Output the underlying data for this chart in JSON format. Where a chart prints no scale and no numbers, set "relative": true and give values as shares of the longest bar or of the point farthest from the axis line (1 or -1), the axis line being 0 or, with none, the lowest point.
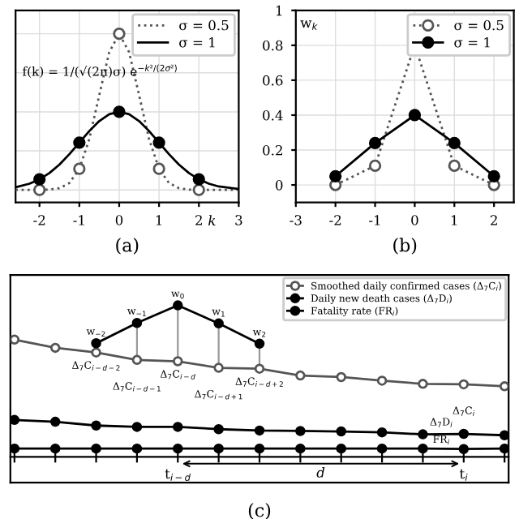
{
  "chart_data": [
    {
      "type": "line",
      "relative": true,
      "xlabel": "k",
      "xlim": [
        -2.6,
        3
      ],
      "xticks": [
        -2,
        -1,
        0,
        1,
        2,
        3
      ],
      "grid": true,
      "legend": "top right",
      "annotations": [
        "f(k) = 1/(√(2π)σ) e$^{−k²/(2σ²)}$",
        "(a)"
      ],
      "series": [
        {
          "name": "σ = 0.5",
          "color": "#555555",
          "line_style": "dotted",
          "marker": "none",
          "x": [
            -2.6,
            -2.25,
            -2,
            -1.75,
            -1.5,
            -1.25,
            -1,
            -0.75,
            -0.5,
            -0.25,
            0,
            0.25,
            0.5,
            0.75,
            1,
            1.25,
            1.5,
            1.75,
            2,
            2.25,
            2.5,
            3
          ],
          "values": [
            0,
            0,
            0,
            0.002,
            0.011,
            0.044,
            0.135,
            0.325,
            0.607,
            0.882,
            1,
            0.882,
            0.607,
            0.325,
            0.135,
            0.044,
            0.011,
            0.002,
            0,
            0,
            0,
            0
          ]
        },
        {
          "name": "σ = 1",
          "color": "#000000",
          "line_style": "solid",
          "marker": "none",
          "x": [
            -2.6,
            -2.25,
            -2,
            -1.75,
            -1.5,
            -1.25,
            -1,
            -0.75,
            -0.5,
            -0.25,
            0,
            0.25,
            0.5,
            0.75,
            1,
            1.25,
            1.5,
            1.75,
            2,
            2.25,
            2.5,
            3
          ],
          "values": [
            0.017,
            0.04,
            0.068,
            0.108,
            0.162,
            0.229,
            0.303,
            0.377,
            0.441,
            0.485,
            0.5,
            0.485,
            0.441,
            0.377,
            0.303,
            0.229,
            0.162,
            0.108,
            0.068,
            0.04,
            0.022,
            0.006
          ]
        },
        {
          "type": "scatter",
          "color": "#555555",
          "marker": "circle",
          "x": [
            -2,
            -1,
            0,
            1,
            2
          ],
          "values": [
            0,
            0.135,
            1,
            0.135,
            0
          ]
        },
        {
          "type": "scatter",
          "color": "#000000",
          "marker": "circle",
          "x": [
            -2,
            -1,
            0,
            1,
            2
          ],
          "values": [
            0.068,
            0.303,
            0.5,
            0.303,
            0.068
          ]
        }
      ]
    },
    {
      "type": "line",
      "ylabel": "w$_{k}$",
      "xlim": [
        -3,
        2.5
      ],
      "xticks": [
        -3,
        -2,
        -1,
        0,
        1,
        2
      ],
      "ylim": [
        -0.1,
        1
      ],
      "yticks": [
        0,
        0.2,
        0.4,
        0.6,
        0.8,
        1
      ],
      "grid": true,
      "legend": "top right",
      "marker": "circle",
      "annotations": [
        "(b)"
      ],
      "x": [
        -2,
        -1,
        0,
        1,
        2
      ],
      "series": [
        {
          "name": "σ = 0.5",
          "color": "#555555",
          "line_style": "dotted",
          "values": [
            0,
            0.11,
            0.8,
            0.11,
            0
          ]
        },
        {
          "name": "σ = 1",
          "color": "#000000",
          "line_style": "solid",
          "values": [
            0.05,
            0.24,
            0.4,
            0.24,
            0.05
          ]
        }
      ]
    },
    {
      "type": "line",
      "relative": true,
      "legend": "top right",
      "grid": false,
      "marker": "circle",
      "categories": [
        null,
        null,
        null,
        null,
        "t$_{i−d}$",
        null,
        null,
        null,
        null,
        null,
        null,
        "t$_{i}$",
        null
      ],
      "annotations": [
        "d",
        "(c)",
        {
          "text": "Δ$_{7}$C$_{i−d−2}$",
          "y": 0.689
        },
        {
          "text": "Δ$_{7}$C$_{i−d−1}$",
          "y": 0.64
        },
        {
          "text": "Δ$_{7}$C$_{i−d}$",
          "y": 0.631
        },
        {
          "text": "Δ$_{7}$C$_{i−d+1}$",
          "y": 0.588
        },
        {
          "text": "Δ$_{7}$C$_{i−d+2}$",
          "y": 0.582
        },
        {
          "text": "Δ$_{7}$C$_{i}$",
          "y": 0.479
        },
        {
          "text": "Δ$_{7}$D$_{i}$",
          "y": 0.152
        },
        {
          "text": "FR$_{i}$",
          "y": 0.052
        },
        {
          "text": "w$_{−2}$",
          "y": 0.75
        },
        {
          "text": "w$_{−1}$",
          "y": 0.884
        },
        {
          "text": "w$_{0}$",
          "y": 1
        },
        {
          "text": "w$_{1}$",
          "y": 0.881
        },
        {
          "text": "w$_{2}$",
          "y": 0.747
        }
      ],
      "series": [
        {
          "name": "Smoothed daily confirmed cases (Δ$_{7}$C$_{i}$)",
          "color": "#555555",
          "values": [
            0.774,
            0.72,
            0.689,
            0.64,
            0.631,
            0.588,
            0.582,
            0.537,
            0.527,
            0.503,
            0.482,
            0.479,
            0.466
          ]
        },
        {
          "name": "Daily new death cases (Δ$_{7}$D$_{i}$)",
          "color": "#000000",
          "values": [
            0.244,
            0.232,
            0.207,
            0.198,
            0.198,
            0.183,
            0.174,
            0.171,
            0.168,
            0.162,
            0.149,
            0.152,
            0.143
          ]
        },
        {
          "name": "Fatality rate (FR$_{i}$)",
          "color": "#000000",
          "values": [
            0.055,
            0.055,
            0.055,
            0.055,
            0.055,
            0.055,
            0.055,
            0.055,
            0.055,
            0.055,
            0.055,
            0.052,
            0.055
          ]
        },
        {
          "color": "#000000",
          "values": [
            null,
            null,
            0.75,
            0.884,
            1,
            0.881,
            0.747,
            null,
            null,
            null,
            null,
            null,
            null
          ]
        }
      ]
    }
  ]
}
